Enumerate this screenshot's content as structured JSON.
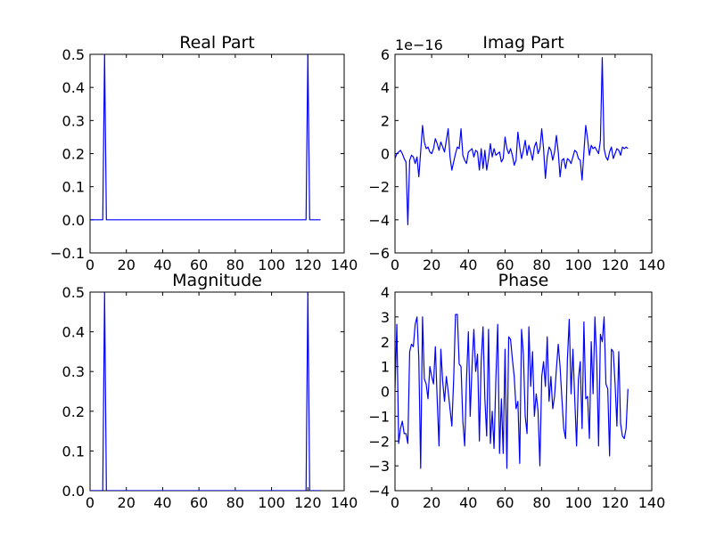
{
  "chart_data": [
    {
      "type": "line",
      "title": "Real Part",
      "xlabel": "",
      "ylabel": "",
      "xlim": [
        0,
        140
      ],
      "ylim": [
        -0.1,
        0.5
      ],
      "xticks": [
        "0",
        "20",
        "40",
        "60",
        "80",
        "100",
        "120",
        "140"
      ],
      "yticks": [
        "−0.1",
        "0.0",
        "0.1",
        "0.2",
        "0.3",
        "0.4",
        "0.5"
      ],
      "offset_text": "",
      "color": "#0000ff",
      "grid": false,
      "series": [
        {
          "x": [
            0,
            7,
            8,
            9,
            119,
            120,
            121,
            127
          ],
          "y": [
            0.0,
            0.0,
            0.5,
            0.0,
            0.0,
            0.5,
            0.0,
            0.0
          ]
        }
      ]
    },
    {
      "type": "line",
      "title": "Imag Part",
      "xlabel": "",
      "ylabel": "",
      "xlim": [
        0,
        140
      ],
      "ylim": [
        -6,
        6
      ],
      "xticks": [
        "0",
        "20",
        "40",
        "60",
        "80",
        "100",
        "120",
        "140"
      ],
      "yticks": [
        "−6",
        "−4",
        "−2",
        "0",
        "2",
        "4",
        "6"
      ],
      "offset_text": "1e−16",
      "color": "#0000ff",
      "grid": false,
      "series": [
        {
          "x": [
            0,
            1,
            2,
            3,
            4,
            5,
            6,
            7,
            8,
            9,
            10,
            11,
            12,
            13,
            14,
            15,
            16,
            17,
            18,
            19,
            20,
            21,
            22,
            23,
            24,
            25,
            26,
            27,
            28,
            29,
            30,
            31,
            32,
            33,
            34,
            35,
            36,
            37,
            38,
            39,
            40,
            41,
            42,
            43,
            44,
            45,
            46,
            47,
            48,
            49,
            50,
            51,
            52,
            53,
            54,
            55,
            56,
            57,
            58,
            59,
            60,
            61,
            62,
            63,
            64,
            65,
            66,
            67,
            68,
            69,
            70,
            71,
            72,
            73,
            74,
            75,
            76,
            77,
            78,
            79,
            80,
            81,
            82,
            83,
            84,
            85,
            86,
            87,
            88,
            89,
            90,
            91,
            92,
            93,
            94,
            95,
            96,
            97,
            98,
            99,
            100,
            101,
            102,
            103,
            104,
            105,
            106,
            107,
            108,
            109,
            110,
            111,
            112,
            113,
            114,
            115,
            116,
            117,
            118,
            119,
            120,
            121,
            122,
            123,
            124,
            125,
            126,
            127
          ],
          "y": [
            -0.3,
            0.0,
            0.1,
            0.2,
            0.0,
            -0.3,
            -0.5,
            -4.3,
            -0.4,
            -0.1,
            -0.2,
            -0.6,
            -0.2,
            -1.4,
            0.1,
            1.7,
            0.7,
            0.3,
            0.4,
            0.1,
            0.0,
            0.3,
            0.9,
            0.6,
            0.2,
            0.7,
            0.4,
            0.1,
            0.8,
            1.5,
            -0.2,
            -1.0,
            -0.5,
            0.0,
            0.4,
            0.3,
            1.5,
            -0.1,
            -0.4,
            -0.6,
            0.1,
            0.2,
            0.3,
            -0.2,
            0.2,
            0.1,
            -1.0,
            0.3,
            -0.9,
            0.2,
            -1.0,
            -0.3,
            0.6,
            -0.2,
            0.3,
            -0.1,
            0.0,
            0.1,
            -0.5,
            -0.3,
            1.0,
            0.3,
            0.0,
            0.3,
            -0.1,
            -0.7,
            -0.4,
            1.3,
            0.4,
            -0.3,
            0.2,
            0.8,
            -0.1,
            0.5,
            0.1,
            -0.4,
            0.4,
            0.7,
            0.0,
            0.3,
            1.5,
            0.3,
            -1.5,
            -0.2,
            0.4,
            0.2,
            -0.4,
            0.1,
            1.1,
            0.1,
            -1.4,
            -0.4,
            -0.3,
            -0.9,
            -0.3,
            -0.4,
            -0.6,
            -0.2,
            0.2,
            0.1,
            -0.3,
            -0.4,
            -1.6,
            0.1,
            1.7,
            0.9,
            -0.1,
            0.5,
            0.3,
            0.4,
            0.2,
            0.0,
            0.8,
            5.8,
            0.3,
            -0.2,
            -0.4,
            0.1,
            0.4,
            -0.3,
            0.0,
            0.3,
            0.2,
            -0.1,
            0.4,
            0.3,
            0.4,
            0.3
          ]
        }
      ]
    },
    {
      "type": "line",
      "title": "Magnitude",
      "xlabel": "",
      "ylabel": "",
      "xlim": [
        0,
        140
      ],
      "ylim": [
        0.0,
        0.5
      ],
      "xticks": [
        "0",
        "20",
        "40",
        "60",
        "80",
        "100",
        "120",
        "140"
      ],
      "yticks": [
        "0.0",
        "0.1",
        "0.2",
        "0.3",
        "0.4",
        "0.5"
      ],
      "offset_text": "",
      "color": "#0000ff",
      "grid": false,
      "series": [
        {
          "x": [
            0,
            7,
            8,
            9,
            119,
            120,
            121,
            127
          ],
          "y": [
            0.0,
            0.0,
            0.5,
            0.0,
            0.0,
            0.5,
            0.0,
            0.0
          ]
        }
      ]
    },
    {
      "type": "line",
      "title": "Phase",
      "xlabel": "",
      "ylabel": "",
      "xlim": [
        0,
        140
      ],
      "ylim": [
        -4,
        4
      ],
      "xticks": [
        "0",
        "20",
        "40",
        "60",
        "80",
        "100",
        "120",
        "140"
      ],
      "yticks": [
        "−4",
        "−3",
        "−2",
        "−1",
        "0",
        "1",
        "2",
        "3",
        "4"
      ],
      "offset_text": "",
      "color": "#0000ff",
      "grid": false,
      "series": [
        {
          "x": [
            0,
            1,
            2,
            3,
            4,
            5,
            6,
            7,
            8,
            9,
            10,
            11,
            12,
            13,
            14,
            15,
            16,
            17,
            18,
            19,
            20,
            21,
            22,
            23,
            24,
            25,
            26,
            27,
            28,
            29,
            30,
            31,
            32,
            33,
            34,
            35,
            36,
            37,
            38,
            39,
            40,
            41,
            42,
            43,
            44,
            45,
            46,
            47,
            48,
            49,
            50,
            51,
            52,
            53,
            54,
            55,
            56,
            57,
            58,
            59,
            60,
            61,
            62,
            63,
            64,
            65,
            66,
            67,
            68,
            69,
            70,
            71,
            72,
            73,
            74,
            75,
            76,
            77,
            78,
            79,
            80,
            81,
            82,
            83,
            84,
            85,
            86,
            87,
            88,
            89,
            90,
            91,
            92,
            93,
            94,
            95,
            96,
            97,
            98,
            99,
            100,
            101,
            102,
            103,
            104,
            105,
            106,
            107,
            108,
            109,
            110,
            111,
            112,
            113,
            114,
            115,
            116,
            117,
            118,
            119,
            120,
            121,
            122,
            123,
            124,
            125,
            126,
            127
          ],
          "y": [
            0.0,
            2.7,
            -2.1,
            -1.5,
            -1.2,
            -1.7,
            -1.7,
            -2.1,
            1.6,
            1.9,
            1.8,
            2.7,
            3.0,
            1.3,
            -3.1,
            3.0,
            0.5,
            0.3,
            -0.3,
            1.0,
            0.6,
            0.3,
            1.8,
            -0.3,
            -2.2,
            1.7,
            0.4,
            -0.4,
            0.6,
            0.0,
            -0.7,
            -1.4,
            0.5,
            3.1,
            3.1,
            1.1,
            1.0,
            -1.2,
            -2.2,
            0.5,
            2.4,
            -1.0,
            1.0,
            2.5,
            0.8,
            1.5,
            -2.0,
            1.2,
            2.6,
            -0.3,
            -1.8,
            2.5,
            -2.1,
            -0.8,
            -2.3,
            0.5,
            2.7,
            -2.5,
            -0.3,
            -2.5,
            1.7,
            -3.1,
            2.2,
            2.1,
            1.3,
            0.6,
            -0.7,
            -0.4,
            -2.9,
            2.5,
            1.5,
            -1.0,
            -1.7,
            2.6,
            0.2,
            1.6,
            -1.0,
            -0.1,
            -0.8,
            -3.0,
            0.6,
            1.2,
            0.2,
            2.2,
            -0.4,
            0.6,
            -0.7,
            -0.2,
            0.9,
            1.9,
            1.0,
            -0.3,
            -1.5,
            -1.9,
            1.3,
            2.9,
            -0.1,
            1.7,
            -0.3,
            -2.2,
            0.5,
            1.2,
            -1.5,
            2.8,
            -0.3,
            -0.2,
            -1.9,
            2.0,
            -0.1,
            3.0,
            1.2,
            -2.2,
            2.3,
            2.0,
            3.0,
            0.3,
            0.1,
            -2.6,
            1.7,
            1.6,
            0.3,
            -1.4,
            1.6,
            -1.3,
            -1.8,
            -1.9,
            -1.5,
            0.1
          ]
        }
      ]
    }
  ]
}
